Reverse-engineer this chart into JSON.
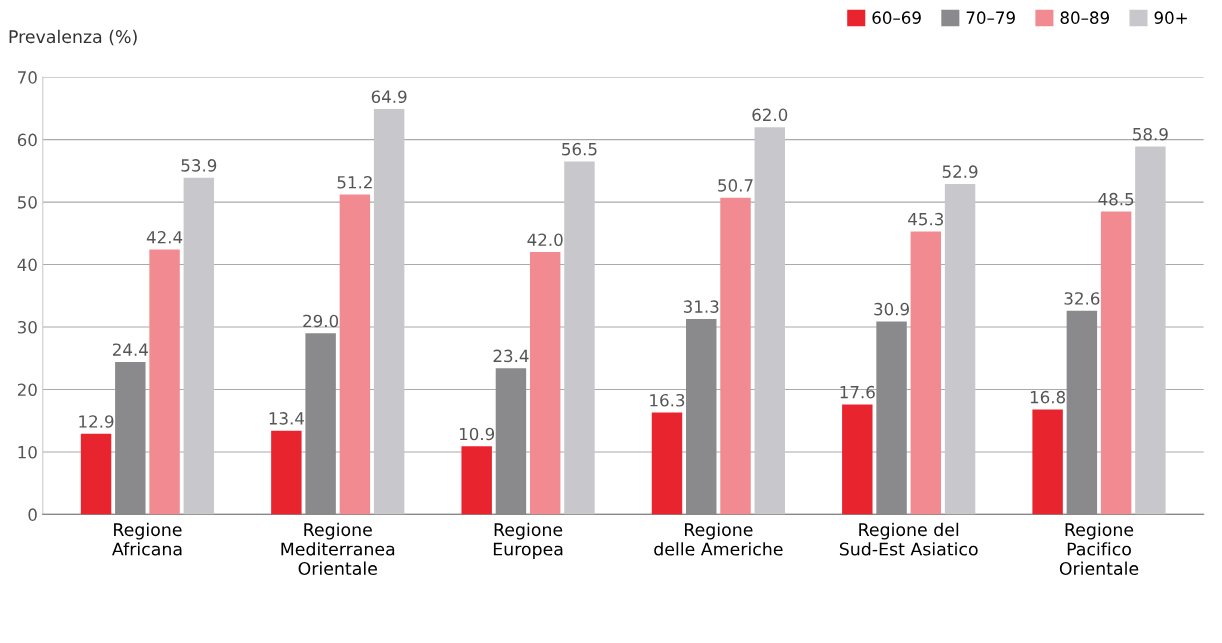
{
  "chart_data": {
    "type": "bar",
    "ylabel": "Prevalenza (%)",
    "categories": [
      "Regione\nAfricana",
      "Regione\nMediterranea\nOrientale",
      "Regione\nEuropea",
      "Regione\ndelle Americhe",
      "Regione del\nSud-Est Asiatico",
      "Regione\nPacifico\nOrientale"
    ],
    "series": [
      {
        "name": "60–69",
        "color": "#e8242f",
        "values": [
          12.9,
          13.4,
          10.9,
          16.3,
          17.6,
          16.8
        ],
        "value_labels": [
          "12.9",
          "13.4",
          "10.9",
          "16.3",
          "17.6",
          "16.8"
        ]
      },
      {
        "name": "70–79",
        "color": "#8a8a8c",
        "values": [
          24.4,
          29.0,
          23.4,
          31.3,
          30.9,
          32.6
        ],
        "value_labels": [
          "24.4",
          "29.0",
          "23.4",
          "31.3",
          "30.9",
          "32.6"
        ]
      },
      {
        "name": "80–89",
        "color": "#f28b91",
        "values": [
          42.4,
          51.2,
          42.0,
          50.7,
          45.3,
          48.5
        ],
        "value_labels": [
          "42.4",
          "51.2",
          "42.0",
          "50.7",
          "45.3",
          "48.5"
        ]
      },
      {
        "name": "90+",
        "color": "#c8c8cc",
        "values": [
          53.9,
          64.9,
          56.5,
          62.0,
          52.9,
          58.9
        ],
        "value_labels": [
          "53.9",
          "64.9",
          "56.5",
          "62.0",
          "52.9",
          "58.9"
        ]
      }
    ],
    "ylim": [
      0,
      70
    ],
    "yticks": [
      0,
      10,
      20,
      30,
      40,
      50,
      60,
      70
    ],
    "grid": "y",
    "legend": "top right"
  }
}
